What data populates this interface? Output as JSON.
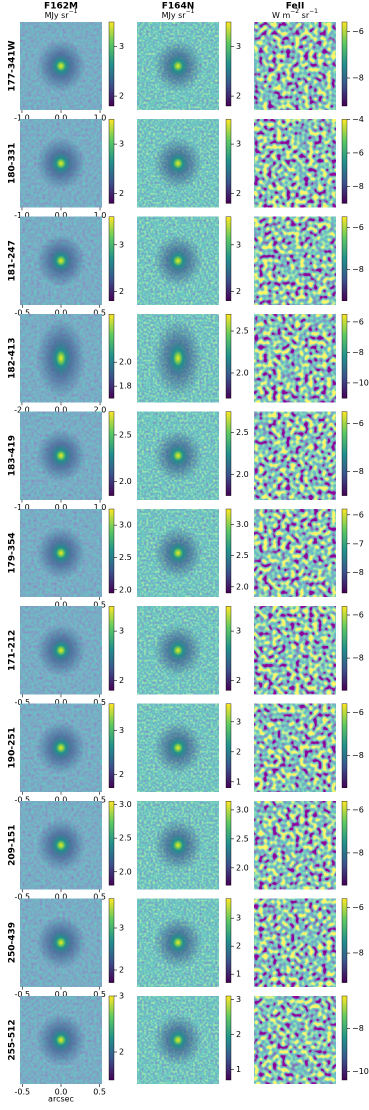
{
  "headers": [
    {
      "title": "F162M",
      "unit": [
        {
          "text": "MJy sr"
        },
        {
          "sup": "−1"
        }
      ]
    },
    {
      "title": "F164N",
      "unit": [
        {
          "text": "MJy sr"
        },
        {
          "sup": "−1"
        }
      ]
    },
    {
      "title": "FeII",
      "unit": [
        {
          "text": "W m"
        },
        {
          "sup": "−2"
        },
        {
          "text": " sr"
        },
        {
          "sup": "−1"
        }
      ]
    }
  ],
  "rows": [
    {
      "label": "177-341W",
      "xlim": [
        -1.05,
        1.05
      ],
      "xticks": [
        {
          "value": -1,
          "label": "-1.0"
        },
        {
          "value": 0,
          "label": "0.0"
        },
        {
          "value": 1,
          "label": "1.0"
        }
      ],
      "colorbars": [
        {
          "lim": [
            1.8,
            3.5
          ],
          "ticks": [
            2,
            3
          ]
        },
        {
          "lim": [
            1.8,
            3.5
          ],
          "ticks": [
            2,
            3
          ]
        },
        {
          "lim": [
            -9.2,
            -5.6
          ],
          "ticks": [
            {
              "value": -6,
              "label": "−6"
            },
            {
              "value": -8,
              "label": "−8"
            }
          ]
        }
      ]
    },
    {
      "label": "180-331",
      "xlim": [
        -1.05,
        1.05
      ],
      "xticks": [
        {
          "value": -1,
          "label": "-1.0"
        },
        {
          "value": 0,
          "label": "0.0"
        },
        {
          "value": 1,
          "label": "1.0"
        }
      ],
      "colorbars": [
        {
          "lim": [
            1.8,
            3.5
          ],
          "ticks": [
            2,
            3
          ]
        },
        {
          "lim": [
            1.8,
            3.5
          ],
          "ticks": [
            2,
            3
          ]
        },
        {
          "lim": [
            -9,
            -4
          ],
          "ticks": [
            {
              "value": -4,
              "label": "−4"
            },
            {
              "value": -6,
              "label": "−6"
            },
            {
              "value": -8,
              "label": "−8"
            }
          ]
        }
      ]
    },
    {
      "label": "181-247",
      "xlim": [
        -0.53,
        0.53
      ],
      "xticks": [
        {
          "value": -0.5,
          "label": "-0.5"
        },
        {
          "value": 0,
          "label": "0.0"
        },
        0.5
      ],
      "colorbars": [
        {
          "lim": [
            1.8,
            3.6
          ],
          "ticks": [
            2,
            3
          ]
        },
        {
          "lim": [
            1.8,
            3.6
          ],
          "ticks": [
            2,
            3
          ]
        },
        {
          "lim": [
            -9.5,
            -5.5
          ],
          "ticks": [
            {
              "value": -6,
              "label": "−6"
            },
            {
              "value": -8,
              "label": "−8"
            }
          ]
        }
      ]
    },
    {
      "label": "182-413",
      "xlim": [
        -2.1,
        2.1
      ],
      "xticks": [
        {
          "value": -2,
          "label": "-2.0"
        },
        {
          "value": 0,
          "label": "0.0"
        },
        {
          "value": 2,
          "label": "2.0"
        }
      ],
      "colorbars": [
        {
          "lim": [
            1.7,
            2.4
          ],
          "ticks": [
            1.8,
            {
              "value": 2,
              "label": "2.0"
            }
          ]
        },
        {
          "lim": [
            1.7,
            2.7
          ],
          "ticks": [
            {
              "value": 2,
              "label": "2.0"
            },
            2.5
          ]
        },
        {
          "lim": [
            -11,
            -5.5
          ],
          "ticks": [
            {
              "value": -6,
              "label": "−6"
            },
            {
              "value": -8,
              "label": "−8"
            },
            {
              "value": -10,
              "label": "−10"
            }
          ]
        }
      ]
    },
    {
      "label": "183-419",
      "xlim": [
        -1.05,
        1.05
      ],
      "xticks": [
        {
          "value": -1,
          "label": "-1.0"
        },
        {
          "value": 0,
          "label": "0.0"
        },
        {
          "value": 1,
          "label": "1.0"
        }
      ],
      "colorbars": [
        {
          "lim": [
            1.85,
            2.75
          ],
          "ticks": [
            {
              "value": 2,
              "label": "2.0"
            },
            2.5
          ]
        },
        {
          "lim": [
            1.75,
            2.75
          ],
          "ticks": [
            {
              "value": 2,
              "label": "2.0"
            },
            2.5
          ]
        },
        {
          "lim": [
            -9,
            -5.5
          ],
          "ticks": [
            {
              "value": -6,
              "label": "−6"
            },
            {
              "value": -8,
              "label": "−8"
            }
          ]
        }
      ]
    },
    {
      "label": "179-354",
      "xlim": [
        -0.53,
        0.53
      ],
      "xticks": [
        {
          "value": 0,
          "label": "0.0"
        },
        0.5
      ],
      "colorbars": [
        {
          "lim": [
            1.95,
            3.25
          ],
          "ticks": [
            {
              "value": 2,
              "label": "2.0"
            },
            2.5,
            {
              "value": 3,
              "label": "3.0"
            }
          ]
        },
        {
          "lim": [
            1.9,
            3.25
          ],
          "ticks": [
            {
              "value": 2,
              "label": "2.0"
            },
            2.5,
            {
              "value": 3,
              "label": "3.0"
            }
          ]
        },
        {
          "lim": [
            -8.7,
            -5.8
          ],
          "ticks": [
            {
              "value": -6,
              "label": "−6"
            },
            {
              "value": -7,
              "label": "−7"
            },
            {
              "value": -8,
              "label": "−8"
            }
          ]
        }
      ]
    },
    {
      "label": "171-212",
      "xlim": [
        -0.53,
        0.53
      ],
      "xticks": [
        {
          "value": -0.5,
          "label": "-0.5"
        },
        {
          "value": 0,
          "label": "0.0"
        },
        0.5
      ],
      "colorbars": [
        {
          "lim": [
            1.8,
            3.5
          ],
          "ticks": [
            2,
            3
          ]
        },
        {
          "lim": [
            1.8,
            3.5
          ],
          "ticks": [
            2,
            3
          ]
        },
        {
          "lim": [
            -9.5,
            -5.6
          ],
          "ticks": [
            {
              "value": -6,
              "label": "−6"
            },
            {
              "value": -8,
              "label": "−8"
            }
          ]
        }
      ]
    },
    {
      "label": "190-251",
      "xlim": [
        -0.53,
        0.53
      ],
      "xticks": [
        {
          "value": -0.5,
          "label": "-0.5"
        },
        {
          "value": 0,
          "label": "0.0"
        },
        0.5
      ],
      "colorbars": [
        {
          "lim": [
            1.7,
            3.6
          ],
          "ticks": [
            2,
            3
          ]
        },
        {
          "lim": [
            0.8,
            3.6
          ],
          "ticks": [
            1,
            2,
            3
          ]
        },
        {
          "lim": [
            -9.5,
            -5.6
          ],
          "ticks": [
            {
              "value": -6,
              "label": "−6"
            },
            {
              "value": -8,
              "label": "−8"
            }
          ]
        }
      ]
    },
    {
      "label": "209-151",
      "xlim": [
        -0.53,
        0.53
      ],
      "xticks": [
        {
          "value": -0.5,
          "label": "-0.5"
        },
        {
          "value": 0,
          "label": "0.0"
        },
        0.5
      ],
      "colorbars": [
        {
          "lim": [
            1.8,
            3.05
          ],
          "ticks": [
            {
              "value": 2,
              "label": "2.0"
            },
            2.5,
            {
              "value": 3,
              "label": "3.0"
            }
          ]
        },
        {
          "lim": [
            1.7,
            3.15
          ],
          "ticks": [
            {
              "value": 2,
              "label": "2.0"
            },
            2.5,
            {
              "value": 3,
              "label": "3.0"
            }
          ]
        },
        {
          "lim": [
            -9.5,
            -5.6
          ],
          "ticks": [
            {
              "value": -6,
              "label": "−6"
            },
            {
              "value": -8,
              "label": "−8"
            }
          ]
        }
      ]
    },
    {
      "label": "250-439",
      "xlim": [
        -0.53,
        0.53
      ],
      "xticks": [
        {
          "value": -0.5,
          "label": "-0.5"
        },
        {
          "value": 0,
          "label": "0.0"
        },
        0.5
      ],
      "colorbars": [
        {
          "lim": [
            1.7,
            3.7
          ],
          "ticks": [
            2,
            3
          ]
        },
        {
          "lim": [
            0.7,
            3.7
          ],
          "ticks": [
            1,
            2,
            3
          ]
        },
        {
          "lim": [
            -9.3,
            -5.6
          ],
          "ticks": [
            {
              "value": -6,
              "label": "−6"
            },
            {
              "value": -8,
              "label": "−8"
            }
          ]
        }
      ]
    },
    {
      "label": "255-512",
      "xlim": [
        -0.53,
        0.53
      ],
      "xticks": [
        {
          "value": -0.5,
          "label": "-0.5"
        },
        {
          "value": 0,
          "label": "0.0"
        },
        0.5
      ],
      "colorbars": [
        {
          "lim": [
            1.5,
            3.0
          ],
          "ticks": [
            2,
            3
          ]
        },
        {
          "lim": [
            0.7,
            3.1
          ],
          "ticks": [
            1,
            2,
            3
          ]
        },
        {
          "lim": [
            -10.4,
            -6.5
          ],
          "ticks": [
            {
              "value": -8,
              "label": "−8"
            },
            {
              "value": -10,
              "label": "−10"
            }
          ]
        }
      ]
    }
  ],
  "xlabel": "arcsec"
}
